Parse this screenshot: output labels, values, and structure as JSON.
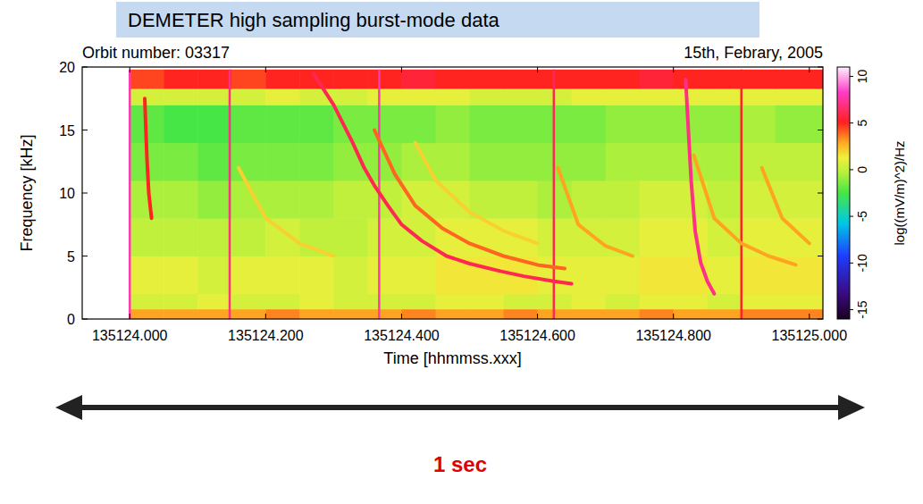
{
  "chart_data": {
    "type": "spectrogram",
    "title": "DEMETER high sampling burst-mode data",
    "annotations": [
      "Orbit number: 03317",
      "15th, Febrary, 2005",
      "1 sec"
    ],
    "xlabel": "Time [hhmmss.xxx]",
    "ylabel": "Frequency [kHz]",
    "xlim": [
      135123.93,
      135125.02
    ],
    "ylim": [
      0,
      20
    ],
    "xticks": [
      {
        "value": 135124.0,
        "label": "135124.000"
      },
      {
        "value": 135124.2,
        "label": "135124.200"
      },
      {
        "value": 135124.4,
        "label": "135124.400"
      },
      {
        "value": 135124.6,
        "label": "135124.600"
      },
      {
        "value": 135124.8,
        "label": "135124.800"
      },
      {
        "value": 135125.0,
        "label": "135125.000"
      }
    ],
    "yticks": [
      0,
      5,
      10,
      15,
      20
    ],
    "grid": false,
    "colorbar": {
      "label": "log((mV/m)^2)/Hz",
      "range": [
        -16,
        11
      ],
      "ticks": [
        -15,
        -10,
        -5,
        0,
        5,
        10
      ]
    },
    "cells": {
      "x": [
        135124.0,
        135124.05,
        135124.1,
        135124.15,
        135124.2,
        135124.25,
        135124.3,
        135124.35,
        135124.4,
        135124.45,
        135124.5,
        135124.55,
        135124.6,
        135124.65,
        135124.7,
        135124.75,
        135124.8,
        135124.85,
        135124.9,
        135124.95,
        135125.02
      ],
      "y": [
        0,
        0.8,
        2,
        5,
        8,
        11,
        14,
        17,
        18.3,
        19.8
      ],
      "values": [
        [
          3,
          3,
          3,
          3,
          3.5,
          3,
          3,
          3,
          3.5,
          3,
          3,
          3.5,
          3,
          3,
          3,
          3.5,
          3,
          3,
          3.5,
          3.5
        ],
        [
          0.5,
          0.5,
          1,
          0.5,
          0.5,
          1,
          0.5,
          0.5,
          0.5,
          1,
          1,
          0.5,
          0.5,
          1,
          0.5,
          1,
          1,
          0.5,
          1,
          1
        ],
        [
          1,
          1,
          0.5,
          1,
          1,
          1,
          0.5,
          1,
          1,
          1.5,
          1.5,
          1.5,
          1,
          1,
          1,
          1.5,
          1.5,
          1,
          1.5,
          1.5
        ],
        [
          0,
          0,
          0,
          0,
          0.5,
          0,
          0,
          0.5,
          0.5,
          1,
          1,
          1,
          0.5,
          0.5,
          0.5,
          1,
          1,
          0.5,
          1,
          1
        ],
        [
          -0.5,
          -0.5,
          -1,
          -0.5,
          -0.5,
          -0.5,
          0,
          0,
          0.5,
          0.5,
          0,
          0,
          -0.5,
          0,
          0,
          0.5,
          0.5,
          0,
          0.5,
          0.5
        ],
        [
          -1.5,
          -1.5,
          -2,
          -1.5,
          -1.5,
          -1.5,
          -1,
          -1,
          -0.5,
          -0.5,
          -1,
          -1,
          -1,
          -1,
          -0.5,
          -0.5,
          -0.5,
          -0.5,
          0,
          0
        ],
        [
          -2,
          -2.5,
          -2.5,
          -2,
          -2,
          -2,
          -1.5,
          -1.5,
          -1.5,
          -1,
          -1.5,
          -1.5,
          -1.5,
          -1.5,
          -1,
          -1,
          -1,
          -1,
          -0.5,
          -1
        ],
        [
          0.5,
          0.5,
          0.5,
          0.5,
          1,
          0.5,
          0.5,
          1,
          1,
          1,
          0.5,
          0.5,
          0.5,
          1,
          1,
          1,
          1,
          1,
          1,
          1
        ],
        [
          4.5,
          5,
          5,
          4.5,
          5,
          5,
          5,
          5,
          5.5,
          5,
          5,
          5,
          5,
          5,
          5,
          5.5,
          5,
          5,
          5,
          5
        ]
      ]
    },
    "whistlers": [
      {
        "x": [
          135124.27,
          135124.3,
          135124.328,
          135124.345,
          135124.361,
          135124.38,
          135124.4,
          135124.43,
          135124.466,
          135124.5,
          135124.545,
          135124.58,
          135124.624,
          135124.65
        ],
        "y": [
          19.5,
          17,
          14,
          12,
          10.5,
          9,
          7.5,
          6.2,
          5,
          4.4,
          3.8,
          3.4,
          3.0,
          2.8
        ],
        "value": 6
      },
      {
        "x": [
          135124.36,
          135124.39,
          135124.42,
          135124.46,
          135124.5,
          135124.55,
          135124.6,
          135124.64
        ],
        "y": [
          15,
          11.5,
          9,
          7.2,
          6,
          5,
          4.3,
          4
        ],
        "value": 4
      },
      {
        "x": [
          135124.42,
          135124.45,
          135124.5,
          135124.55,
          135124.6
        ],
        "y": [
          14,
          11,
          8.5,
          7,
          6
        ],
        "value": 2
      },
      {
        "x": [
          135124.63,
          135124.66,
          135124.7,
          135124.74
        ],
        "y": [
          12,
          7.5,
          5.8,
          5
        ],
        "value": 3
      },
      {
        "x": [
          135124.818,
          135124.822,
          135124.826,
          135124.832,
          135124.84,
          135124.85,
          135124.86
        ],
        "y": [
          19,
          15,
          11,
          7,
          4.5,
          3,
          2
        ],
        "value": 7
      },
      {
        "x": [
          135124.83,
          135124.86,
          135124.9,
          135124.94,
          135124.98
        ],
        "y": [
          13,
          8,
          6,
          5,
          4.3
        ],
        "value": 3
      },
      {
        "x": [
          135124.16,
          135124.2,
          135124.25,
          135124.3
        ],
        "y": [
          12,
          8,
          6,
          5
        ],
        "value": 2
      },
      {
        "x": [
          135124.022,
          135124.025,
          135124.028,
          135124.032
        ],
        "y": [
          17.5,
          13,
          10,
          8
        ],
        "value": 5
      },
      {
        "x": [
          135124.93,
          135124.96,
          135125.0
        ],
        "y": [
          12,
          8,
          6
        ],
        "value": 3
      }
    ],
    "sferics": {
      "x": [
        135124.0,
        135124.147,
        135124.367,
        135124.624,
        135124.9
      ],
      "values": [
        8,
        7,
        8,
        6,
        5
      ]
    }
  }
}
